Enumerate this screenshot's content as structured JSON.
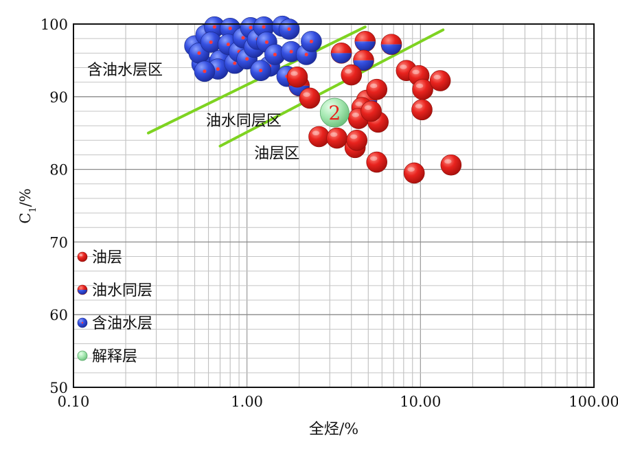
{
  "chart_data": {
    "type": "scatter",
    "x_scale": "log",
    "xlim": [
      0.1,
      100
    ],
    "ylim": [
      50,
      100
    ],
    "xlabel": "全烃/%",
    "ylabel_main": "C",
    "ylabel_sub": "1",
    "ylabel_unit": "/%",
    "x_ticks": [
      {
        "value": 0.1,
        "label": "0.10"
      },
      {
        "value": 1,
        "label": "1.00"
      },
      {
        "value": 10,
        "label": "10.00"
      },
      {
        "value": 100,
        "label": "100.00"
      }
    ],
    "y_ticks": [
      50,
      60,
      70,
      80,
      90,
      100
    ],
    "grid": true,
    "region_labels": [
      {
        "text": "含油水层区",
        "x": 0.12,
        "y": 93
      },
      {
        "text": "油水同层区",
        "x": 0.58,
        "y": 86
      },
      {
        "text": "油层区",
        "x": 1.1,
        "y": 81.5
      }
    ],
    "boundary_lines": [
      {
        "x1": 0.27,
        "y1": 85,
        "x2": 4.8,
        "y2": 99.6,
        "color": "#7ed321"
      },
      {
        "x1": 0.7,
        "y1": 83.2,
        "x2": 13.5,
        "y2": 99.2,
        "color": "#7ed321"
      }
    ],
    "legend": {
      "position": "lower-left",
      "items": [
        {
          "label": "油层",
          "kind": "oil"
        },
        {
          "label": "油水同层",
          "kind": "oilwater"
        },
        {
          "label": "含油水层",
          "kind": "water"
        },
        {
          "label": "解释层",
          "kind": "interp"
        }
      ]
    },
    "colors": {
      "oil": "#e8231e",
      "water": "#2f45d8",
      "interp": "#9be0a8",
      "interp_text": "#e8231e",
      "line": "#7ed321"
    },
    "series": [
      {
        "name": "含油水层",
        "kind": "water",
        "points": [
          [
            0.5,
            97
          ],
          [
            0.55,
            94.5
          ],
          [
            0.53,
            96
          ],
          [
            0.58,
            98.5
          ],
          [
            0.65,
            99.6
          ],
          [
            0.62,
            97.5
          ],
          [
            0.7,
            95
          ],
          [
            0.68,
            93.8
          ],
          [
            0.8,
            99.4
          ],
          [
            0.78,
            97.2
          ],
          [
            0.85,
            94.6
          ],
          [
            0.9,
            96.2
          ],
          [
            0.95,
            98.1
          ],
          [
            1.0,
            95.2
          ],
          [
            1.05,
            99.5
          ],
          [
            1.1,
            96.8
          ],
          [
            1.15,
            97.9
          ],
          [
            1.25,
            99.6
          ],
          [
            1.3,
            97.5
          ],
          [
            1.35,
            94.2
          ],
          [
            1.45,
            95.8
          ],
          [
            1.6,
            99.7
          ],
          [
            1.75,
            99.3
          ],
          [
            1.8,
            96.2
          ],
          [
            2.2,
            95.8
          ],
          [
            2.35,
            97.6
          ],
          [
            0.57,
            93.5
          ],
          [
            1.2,
            93.6
          ],
          [
            1.7,
            92.8
          ]
        ]
      },
      {
        "name": "油水同层",
        "kind": "oilwater",
        "points": [
          [
            4.8,
            97.6
          ],
          [
            3.5,
            96
          ],
          [
            4.7,
            95
          ],
          [
            6.8,
            97.2
          ],
          [
            2.0,
            91.5
          ],
          [
            4.9,
            89.5
          ]
        ]
      },
      {
        "name": "油层",
        "kind": "oil",
        "points": [
          [
            1.95,
            92.7
          ],
          [
            2.3,
            89.8
          ],
          [
            4.0,
            93
          ],
          [
            5.6,
            91
          ],
          [
            8.3,
            93.6
          ],
          [
            9.8,
            92.9
          ],
          [
            10.3,
            91
          ],
          [
            13.0,
            92.2
          ],
          [
            10.2,
            88.2
          ],
          [
            2.6,
            84.5
          ],
          [
            3.3,
            84.3
          ],
          [
            4.2,
            83
          ],
          [
            4.3,
            84
          ],
          [
            4.6,
            88.5
          ],
          [
            4.4,
            87
          ],
          [
            5.7,
            86.5
          ],
          [
            5.2,
            88
          ],
          [
            5.6,
            81
          ],
          [
            9.2,
            79.5
          ],
          [
            15.0,
            80.6
          ]
        ]
      },
      {
        "name": "解释层",
        "kind": "interp",
        "points": [
          [
            3.2,
            87.8
          ]
        ],
        "labels": [
          "2"
        ]
      }
    ]
  }
}
